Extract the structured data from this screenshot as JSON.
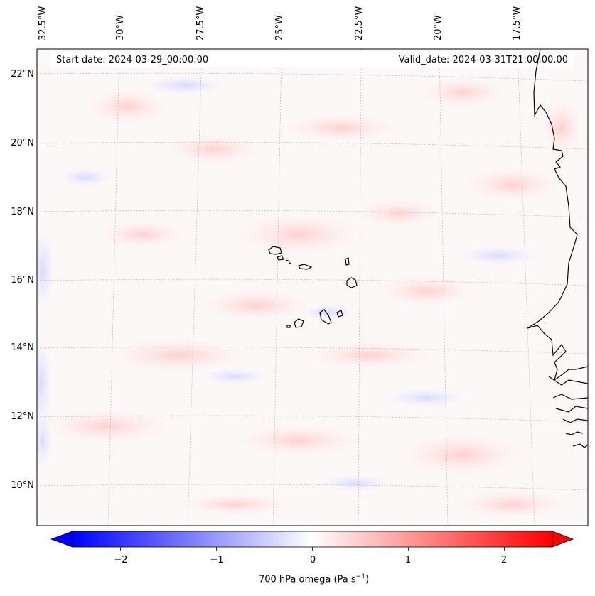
{
  "map": {
    "start_date": "Start date: 2024-03-29_00:00:00",
    "valid_date": "Valid_date: 2024-03-31T21:00:00.00",
    "lon_labels": [
      "32.5°W",
      "30°W",
      "27.5°W",
      "25°W",
      "22.5°W",
      "20°W",
      "17.5°W"
    ],
    "lat_labels": [
      "22°N",
      "20°N",
      "18°N",
      "16°N",
      "14°N",
      "12°N",
      "10°N"
    ],
    "field_variable": "700 hPa omega",
    "colorbar": {
      "label": "700 hPa omega (Pa s",
      "label_exp": "−1",
      "label_end": ")",
      "ticks": [
        "−2",
        "−1",
        "0",
        "1",
        "2"
      ],
      "tick_values": [
        -2,
        -1,
        0,
        1,
        2
      ],
      "range": [
        -2.5,
        2.5
      ],
      "low_color": "#0000ff",
      "mid_color": "#ffffff",
      "high_color": "#ff0000",
      "extend": "both"
    },
    "colors": {
      "land_outline": "#000000",
      "gridline": "#b0b0b0"
    }
  }
}
